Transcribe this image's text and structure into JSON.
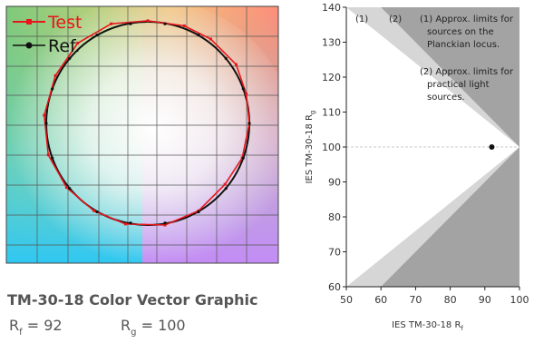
{
  "cvg": {
    "title": "TM-30-18 Color Vector Graphic",
    "rf_label": "R",
    "rf_sub": "f",
    "rf_eq": " = ",
    "rf_value": "92",
    "rg_label": "R",
    "rg_sub": "g",
    "rg_eq": " = ",
    "rg_value": "100"
  },
  "colors": {
    "test": "#e8161b",
    "reference": "#111111",
    "limit_outer": "#d6d6d6",
    "limit_inner": "#a3a3a3",
    "point": "#111111"
  },
  "chart_data": [
    {
      "type": "scatter",
      "name": "color-vector-graphic",
      "legend": [
        "Test",
        "Ref."
      ],
      "legend_position": "top-left",
      "grid": true,
      "series": [
        {
          "name": "Test",
          "marker": "square",
          "color": "#e8161b",
          "points": [
            [
              1.0,
              0.0
            ],
            [
              0.97,
              0.29
            ],
            [
              0.87,
              0.58
            ],
            [
              0.62,
              0.83
            ],
            [
              0.36,
              0.96
            ],
            [
              0.0,
              1.01
            ],
            [
              -0.36,
              0.98
            ],
            [
              -0.69,
              0.79
            ],
            [
              -0.91,
              0.47
            ],
            [
              -1.02,
              0.08
            ],
            [
              -0.98,
              -0.31
            ],
            [
              -0.8,
              -0.63
            ],
            [
              -0.53,
              -0.86
            ],
            [
              -0.22,
              -0.99
            ],
            [
              0.17,
              -1.0
            ],
            [
              0.5,
              -0.86
            ],
            [
              0.76,
              -0.6
            ],
            [
              0.93,
              -0.34
            ]
          ]
        },
        {
          "name": "Ref.",
          "marker": "circle",
          "color": "#111111",
          "points": [
            [
              1.0,
              0.0
            ],
            [
              0.94,
              0.34
            ],
            [
              0.77,
              0.64
            ],
            [
              0.5,
              0.87
            ],
            [
              0.17,
              0.98
            ],
            [
              -0.17,
              0.98
            ],
            [
              -0.5,
              0.87
            ],
            [
              -0.77,
              0.64
            ],
            [
              -0.94,
              0.34
            ],
            [
              -1.0,
              0.0
            ],
            [
              -0.94,
              -0.34
            ],
            [
              -0.77,
              -0.64
            ],
            [
              -0.5,
              -0.87
            ],
            [
              -0.17,
              -0.98
            ],
            [
              0.17,
              -0.98
            ],
            [
              0.5,
              -0.87
            ],
            [
              0.77,
              -0.64
            ],
            [
              0.94,
              -0.34
            ]
          ]
        }
      ]
    },
    {
      "type": "scatter",
      "name": "rf-rg-plot",
      "xlabel": "IES TM-30-18 R",
      "xlabel_sub": "f",
      "ylabel": "IES TM-30-18 R",
      "ylabel_sub": "g",
      "xlim": [
        50,
        100
      ],
      "ylim": [
        60,
        140
      ],
      "xticks": [
        50,
        60,
        70,
        80,
        90,
        100
      ],
      "yticks": [
        60,
        70,
        80,
        90,
        100,
        110,
        120,
        130,
        140
      ],
      "reference_line_y": 100,
      "limits": [
        {
          "label": "(1)",
          "note": "(1) Approx. limits for sources on the Planckian locus.",
          "note_lines": [
            "(1) Approx. limits for",
            "sources on the",
            "Planckian locus."
          ],
          "upper": [
            [
              50,
              140
            ],
            [
              100,
              100
            ]
          ],
          "lower": [
            [
              50,
              60
            ],
            [
              100,
              100
            ]
          ]
        },
        {
          "label": "(2)",
          "note": "(2) Approx. limits for practical light sources.",
          "note_lines": [
            "(2) Approx. limits for",
            "practical light",
            "sources."
          ],
          "upper": [
            [
              60,
              140
            ],
            [
              100,
              100
            ]
          ],
          "lower": [
            [
              60,
              60
            ],
            [
              100,
              100
            ]
          ]
        }
      ],
      "points": [
        {
          "x": 92,
          "y": 100
        }
      ]
    }
  ]
}
